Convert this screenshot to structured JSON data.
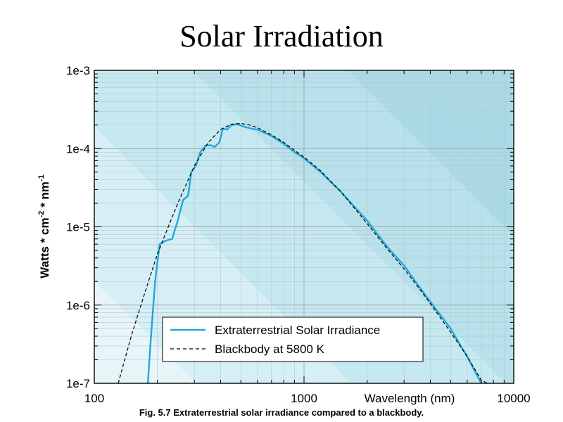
{
  "slide": {
    "title": "Solar Irradiation",
    "caption": "Fig. 5.7  Extraterrestrial solar irradiance compared to a blackbody."
  },
  "chart_data": {
    "type": "line",
    "xscale": "log",
    "yscale": "log",
    "xlim": [
      100,
      10000
    ],
    "ylim": [
      1e-07,
      0.001
    ],
    "xlabel": "Wavelength (nm)",
    "ylabel_parts": [
      "Watts * cm",
      "-2",
      " * nm",
      "-1"
    ],
    "x_ticks": [
      {
        "value": 100,
        "label": "100"
      },
      {
        "value": 1000,
        "label": "1000"
      },
      {
        "value": 10000,
        "label": "10000"
      }
    ],
    "y_ticks": [
      {
        "value": 0.001,
        "label": "1e-3"
      },
      {
        "value": 0.0001,
        "label": "1e-4"
      },
      {
        "value": 1e-05,
        "label": "1e-5"
      },
      {
        "value": 1e-06,
        "label": "1e-6"
      },
      {
        "value": 1e-07,
        "label": "1e-7"
      }
    ],
    "grid": true,
    "legend_position": "bottom-right",
    "series": [
      {
        "name": "Extraterrestrial Solar Irradiance",
        "style": "solid",
        "color": "#1ea8d8",
        "points": [
          [
            180,
            1e-07
          ],
          [
            185,
            3e-07
          ],
          [
            190,
            8e-07
          ],
          [
            195,
            2e-06
          ],
          [
            200,
            3.5e-06
          ],
          [
            205,
            6e-06
          ],
          [
            215,
            6.5e-06
          ],
          [
            225,
            6.8e-06
          ],
          [
            235,
            7e-06
          ],
          [
            250,
            1.2e-05
          ],
          [
            265,
            2.2e-05
          ],
          [
            280,
            2.5e-05
          ],
          [
            290,
            5e-05
          ],
          [
            305,
            6e-05
          ],
          [
            320,
            9e-05
          ],
          [
            340,
            0.00011
          ],
          [
            360,
            0.00011
          ],
          [
            375,
            0.000105
          ],
          [
            395,
            0.00012
          ],
          [
            410,
            0.00018
          ],
          [
            430,
            0.000175
          ],
          [
            450,
            0.0002
          ],
          [
            480,
            0.000205
          ],
          [
            520,
            0.00019
          ],
          [
            560,
            0.00018
          ],
          [
            600,
            0.000175
          ],
          [
            700,
            0.000145
          ],
          [
            800,
            0.000115
          ],
          [
            900,
            9e-05
          ],
          [
            1000,
            7.5e-05
          ],
          [
            1200,
            5e-05
          ],
          [
            1500,
            2.8e-05
          ],
          [
            2000,
            1.2e-05
          ],
          [
            2500,
            5.5e-06
          ],
          [
            3000,
            3.2e-06
          ],
          [
            3500,
            1.8e-06
          ],
          [
            4000,
            1.1e-06
          ],
          [
            5000,
            5e-07
          ],
          [
            6000,
            2.2e-07
          ],
          [
            7000,
            1e-07
          ]
        ]
      },
      {
        "name": "Blackbody at 5800 K",
        "style": "dashed",
        "color": "#000000",
        "temperature_K": 5800,
        "points": [
          [
            130,
            1e-07
          ],
          [
            150,
            4e-07
          ],
          [
            175,
            1.5e-06
          ],
          [
            200,
            4.5e-06
          ],
          [
            250,
            2e-05
          ],
          [
            300,
            6e-05
          ],
          [
            350,
            0.00012
          ],
          [
            400,
            0.000175
          ],
          [
            450,
            0.000205
          ],
          [
            500,
            0.00021
          ],
          [
            550,
            0.0002
          ],
          [
            600,
            0.000185
          ],
          [
            700,
            0.00015
          ],
          [
            800,
            0.00012
          ],
          [
            900,
            9.5e-05
          ],
          [
            1000,
            7.8e-05
          ],
          [
            1200,
            5.2e-05
          ],
          [
            1500,
            2.8e-05
          ],
          [
            2000,
            1.1e-05
          ],
          [
            2500,
            5.2e-06
          ],
          [
            3000,
            2.9e-06
          ],
          [
            3500,
            1.7e-06
          ],
          [
            4000,
            1.05e-06
          ],
          [
            5000,
            4.5e-07
          ],
          [
            6000,
            2.2e-07
          ],
          [
            7000,
            1.1e-07
          ],
          [
            7500,
            1e-07
          ]
        ]
      }
    ]
  }
}
